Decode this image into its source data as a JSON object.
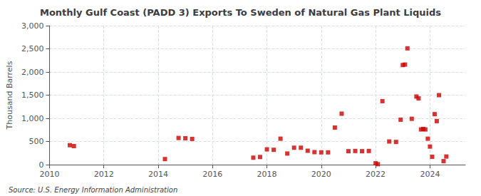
{
  "chart_data": {
    "type": "scatter",
    "title": "Monthly Gulf Coast (PADD 3) Exports To Sweden of Natural Gas Plant Liquids",
    "ylabel": "Thousand Barrels",
    "annotations": [
      "Source: U.S. Energy Information Administration"
    ],
    "color": "#cc0000",
    "marker": "square",
    "grid": true,
    "xlim": [
      2010,
      2025.3
    ],
    "xticks": [
      2010,
      2012,
      2014,
      2016,
      2018,
      2020,
      2022,
      2024
    ],
    "ylim": [
      0,
      3000
    ],
    "yticks": [
      0,
      500,
      {
        "value": 1000,
        "label": "1,000"
      },
      {
        "value": 1500,
        "label": "1,500"
      },
      {
        "value": 2000,
        "label": "2,000"
      },
      {
        "value": 2500,
        "label": "2,500"
      },
      {
        "value": 3000,
        "label": "3,000"
      }
    ],
    "x": [
      2010.75,
      2010.9,
      2014.25,
      2014.75,
      2015.0,
      2015.25,
      2017.5,
      2017.75,
      2018.0,
      2018.25,
      2018.5,
      2018.75,
      2019.0,
      2019.25,
      2019.5,
      2019.75,
      2020.0,
      2020.25,
      2020.5,
      2020.75,
      2021.0,
      2021.25,
      2021.5,
      2021.75,
      2022.0,
      2022.08,
      2022.25,
      2022.5,
      2022.75,
      2022.92,
      2023.0,
      2023.08,
      2023.17,
      2023.33,
      2023.5,
      2023.58,
      2023.67,
      2023.75,
      2023.83,
      2023.92,
      2024.0,
      2024.08,
      2024.17,
      2024.25,
      2024.33,
      2024.5,
      2024.6
    ],
    "values": [
      420,
      400,
      120,
      575,
      570,
      555,
      150,
      165,
      330,
      320,
      560,
      240,
      365,
      365,
      300,
      270,
      265,
      265,
      800,
      1100,
      290,
      295,
      290,
      295,
      30,
      10,
      1370,
      500,
      490,
      970,
      2150,
      2160,
      2510,
      990,
      1470,
      1430,
      760,
      770,
      760,
      560,
      390,
      170,
      1090,
      940,
      1500,
      75,
      175
    ]
  }
}
